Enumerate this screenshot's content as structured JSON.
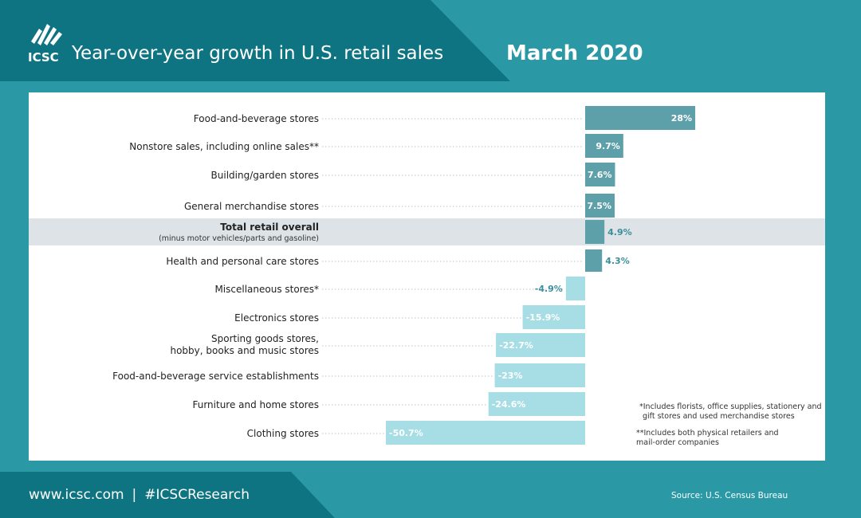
{
  "header": {
    "logo_text": "ICSC",
    "title": "Year-over-year growth in U.S. retail sales",
    "date": "March 2020"
  },
  "colors": {
    "background": "#2a99a5",
    "dark_band": "#0f7481",
    "positive_bar": "#5ea0aa",
    "negative_bar": "#a7dde4",
    "highlight_row": "#dde3e6",
    "inside_label": "#ffffff",
    "outside_label": "#3b8f9c"
  },
  "chart_data": {
    "type": "bar",
    "orientation": "horizontal",
    "categories": [
      "Food-and-beverage stores",
      "Nonstore sales, including online sales**",
      "Building/garden stores",
      "General merchandise stores",
      "Total retail overall",
      "Health and personal care stores",
      "Miscellaneous stores*",
      "Electronics stores",
      "Sporting goods stores, hobby, books and music stores",
      "Food-and-beverage service establishments",
      "Furniture and home stores",
      "Clothing stores"
    ],
    "subtitles": [
      "",
      "",
      "",
      "",
      "(minus motor vehicles/parts and gasoline)",
      "",
      "",
      "",
      "",
      "",
      "",
      ""
    ],
    "values": [
      28,
      9.7,
      7.6,
      7.5,
      4.9,
      4.3,
      -4.9,
      -15.9,
      -22.7,
      -23,
      -24.6,
      -50.7
    ],
    "value_labels": [
      "28%",
      "9.7%",
      "7.6%",
      "7.5%",
      "4.9%",
      "4.3%",
      "-4.9%",
      "-15.9%",
      "-22.7%",
      "-23%",
      "-24.6%",
      "-50.7%"
    ],
    "highlight_index": 4,
    "xlim": [
      -52,
      30
    ]
  },
  "notes": {
    "note1": "*Includes florists, office supplies, stationery and gift stores and used merchandise stores",
    "note2": "**Includes both physical retailers and mail-order companies"
  },
  "footer": {
    "website": "www.icsc.com",
    "separator": "|",
    "hashtag": "#ICSCResearch",
    "source": "Source: U.S. Census Bureau"
  }
}
